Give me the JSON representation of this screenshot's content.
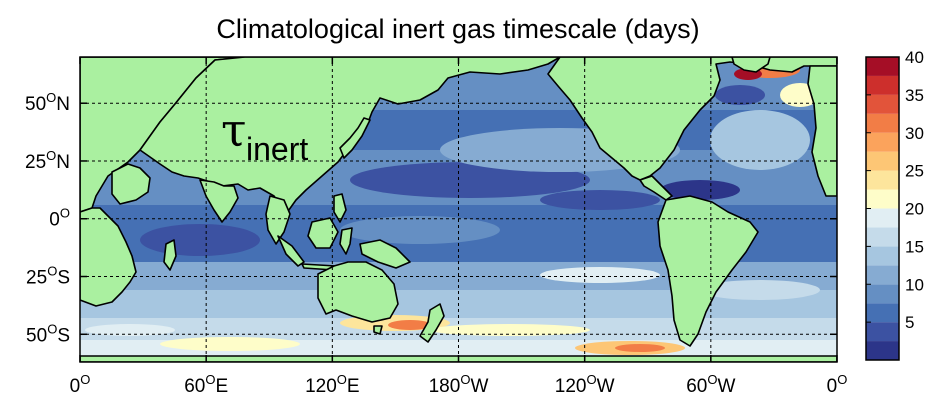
{
  "chart_data": {
    "type": "heatmap",
    "title": "Climatological inert gas timescale (days)",
    "annotation": {
      "symbol": "τ",
      "subscript": "inert"
    },
    "x_ticks": [
      {
        "lon": 0,
        "num": "0",
        "hemi": ""
      },
      {
        "lon": 60,
        "num": "60",
        "hemi": "E"
      },
      {
        "lon": 120,
        "num": "120",
        "hemi": "E"
      },
      {
        "lon": 180,
        "num": "180",
        "hemi": "W"
      },
      {
        "lon": 240,
        "num": "120",
        "hemi": "W"
      },
      {
        "lon": 300,
        "num": "60",
        "hemi": "W"
      },
      {
        "lon": 360,
        "num": "0",
        "hemi": ""
      }
    ],
    "y_ticks": [
      {
        "lat": 50,
        "num": "50",
        "hemi": "N"
      },
      {
        "lat": 25,
        "num": "25",
        "hemi": "N"
      },
      {
        "lat": 0,
        "num": "0",
        "hemi": ""
      },
      {
        "lat": -25,
        "num": "25",
        "hemi": "S"
      },
      {
        "lat": -50,
        "num": "50",
        "hemi": "S"
      }
    ],
    "xlim": [
      0,
      360
    ],
    "ylim": [
      -62,
      70
    ],
    "grid": true,
    "colorbar": {
      "levels": [
        0,
        2.5,
        5,
        7.5,
        10,
        12.5,
        15,
        17.5,
        20,
        22.5,
        25,
        27.5,
        30,
        32.5,
        35,
        37.5,
        40
      ],
      "tick_labels": [
        "5",
        "10",
        "15",
        "20",
        "25",
        "30",
        "35",
        "40"
      ],
      "colors": [
        "#2c3589",
        "#3c52a2",
        "#4570b4",
        "#658fc3",
        "#86abd2",
        "#a6c6e0",
        "#c5dbea",
        "#e1eef3",
        "#fefdc9",
        "#fde59c",
        "#fdc675",
        "#fba35c",
        "#f27d46",
        "#e2543a",
        "#cd2f2c",
        "#a50e26"
      ]
    },
    "land_color": "#aaf0a0"
  }
}
